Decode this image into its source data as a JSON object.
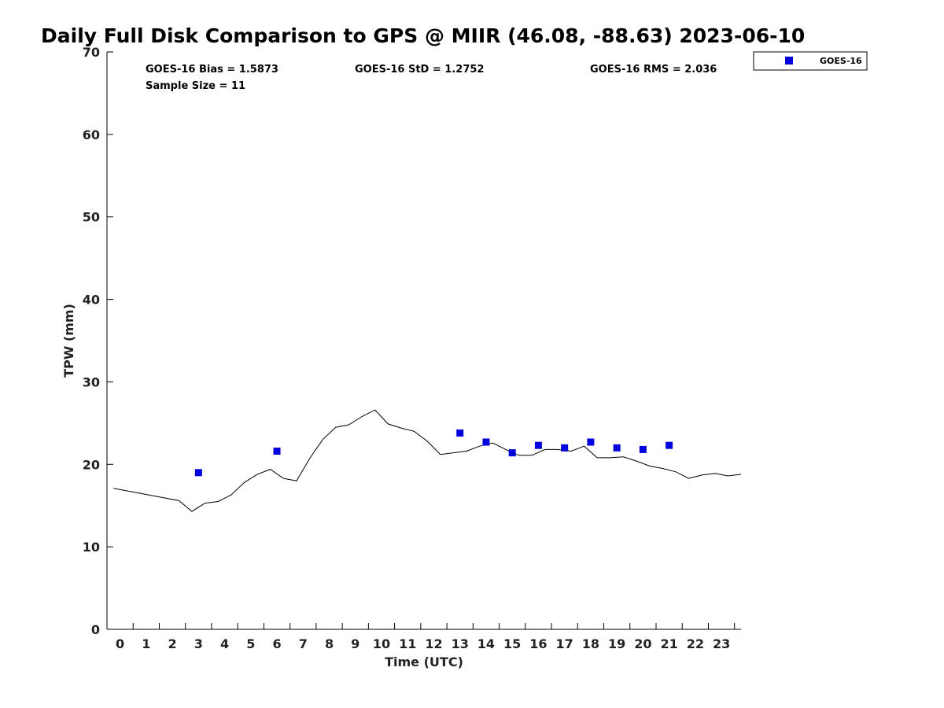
{
  "chart_data": {
    "type": "line",
    "title": "Daily Full Disk Comparison to GPS @ MIIR (46.08, -88.63) 2023-06-10",
    "xlabel": "Time (UTC)",
    "ylabel": "TPW (mm)",
    "xlim": [
      -0.5,
      23.75
    ],
    "ylim": [
      0,
      70
    ],
    "x_ticks": [
      "0",
      "1",
      "2",
      "3",
      "4",
      "5",
      "6",
      "7",
      "8",
      "9",
      "10",
      "11",
      "12",
      "13",
      "14",
      "15",
      "16",
      "17",
      "18",
      "19",
      "20",
      "21",
      "22",
      "23"
    ],
    "y_ticks": [
      "0",
      "10",
      "20",
      "30",
      "40",
      "50",
      "60",
      "70"
    ],
    "grid": false,
    "legend_position": "top-right",
    "stats": {
      "bias": "GOES-16 Bias = 1.5873",
      "std": "GOES-16 StD = 1.2752",
      "rms": "GOES-16 RMS = 2.036",
      "sample_size": "Sample Size = 11"
    },
    "series": [
      {
        "kind": "line",
        "color": "#000000",
        "x": [
          -0.25,
          2.25,
          2.75,
          3.25,
          3.75,
          4.25,
          4.75,
          5.25,
          5.75,
          6.25,
          6.75,
          7.25,
          7.75,
          8.25,
          8.75,
          9.25,
          9.75,
          10.25,
          10.75,
          11.25,
          11.75,
          12.25,
          12.75,
          13.25,
          13.75,
          14.25,
          14.75,
          15.25,
          15.75,
          16.25,
          16.75,
          17.25,
          17.75,
          18.25,
          18.75,
          19.25,
          19.75,
          20.25,
          20.75,
          21.25,
          21.75,
          22.25,
          22.75,
          23.25,
          23.75
        ],
        "y": [
          17.1,
          15.6,
          14.3,
          15.3,
          15.5,
          16.3,
          17.8,
          18.8,
          19.4,
          18.3,
          18.0,
          20.7,
          23.0,
          24.5,
          24.8,
          25.8,
          26.6,
          24.9,
          24.4,
          24.0,
          22.8,
          21.2,
          21.4,
          21.6,
          22.2,
          22.6,
          21.8,
          21.1,
          21.1,
          21.8,
          21.8,
          21.6,
          22.2,
          20.8,
          20.8,
          20.9,
          20.4,
          19.8,
          19.5,
          19.1,
          18.3,
          18.7,
          18.9,
          18.6,
          18.8
        ]
      },
      {
        "kind": "scatter",
        "name": "GOES-16",
        "color": "#0000dd",
        "x": [
          3,
          6,
          13,
          14,
          15,
          16,
          17,
          18,
          19,
          20,
          21
        ],
        "y": [
          19.0,
          21.6,
          23.8,
          22.7,
          21.4,
          22.3,
          22.0,
          22.7,
          22.0,
          21.8,
          22.3
        ]
      }
    ]
  }
}
